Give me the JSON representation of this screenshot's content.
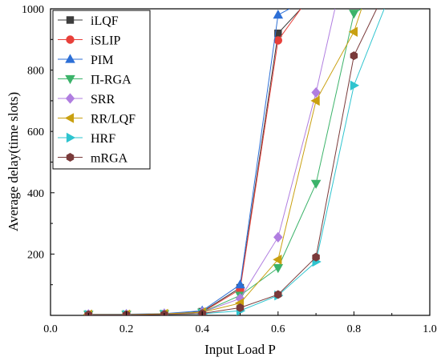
{
  "chart_data": {
    "type": "line",
    "xlabel": "Input Load P",
    "ylabel": "Average delay(time slots)",
    "xlim": [
      0.0,
      1.0
    ],
    "ylim": [
      0,
      1000
    ],
    "x_ticks": [
      "0.0",
      "0.2",
      "0.4",
      "0.6",
      "0.8",
      "1.0"
    ],
    "y_ticks": [
      "200",
      "400",
      "600",
      "800",
      "1000"
    ],
    "x_tick_values": [
      0.0,
      0.2,
      0.4,
      0.6,
      0.8,
      1.0
    ],
    "y_tick_values": [
      200,
      400,
      600,
      800,
      1000
    ],
    "grid": false,
    "legend_position": "top-left",
    "series": [
      {
        "name": "iLQF",
        "marker": "square",
        "color": "#3d3d3d",
        "x": [
          0.1,
          0.2,
          0.3,
          0.4,
          0.5,
          0.6,
          0.66
        ],
        "y": [
          3,
          3,
          5,
          12,
          90,
          920,
          1000
        ]
      },
      {
        "name": "iSLIP",
        "marker": "circle",
        "color": "#e8403a",
        "x": [
          0.1,
          0.2,
          0.3,
          0.4,
          0.5,
          0.6,
          0.66
        ],
        "y": [
          3,
          3,
          4,
          10,
          85,
          897,
          1000
        ]
      },
      {
        "name": "PIM",
        "marker": "triangle-up",
        "color": "#2d6fd6",
        "x": [
          0.1,
          0.2,
          0.3,
          0.4,
          0.5,
          0.6,
          0.63
        ],
        "y": [
          3,
          4,
          6,
          15,
          100,
          980,
          1000
        ]
      },
      {
        "name": "Π-RGA",
        "marker": "triangle-down",
        "color": "#3cb36a",
        "x": [
          0.1,
          0.2,
          0.3,
          0.4,
          0.5,
          0.6,
          0.7,
          0.8,
          0.82
        ],
        "y": [
          3,
          3,
          5,
          10,
          65,
          155,
          430,
          985,
          1000
        ]
      },
      {
        "name": "SRR",
        "marker": "diamond",
        "color": "#b07ee0",
        "x": [
          0.1,
          0.2,
          0.3,
          0.4,
          0.5,
          0.6,
          0.7,
          0.75
        ],
        "y": [
          3,
          3,
          5,
          10,
          55,
          255,
          727,
          1000
        ]
      },
      {
        "name": "RR/LQF",
        "marker": "triangle-left",
        "color": "#c9a010",
        "x": [
          0.1,
          0.2,
          0.3,
          0.4,
          0.5,
          0.6,
          0.7,
          0.8,
          0.82
        ],
        "y": [
          3,
          3,
          5,
          10,
          40,
          182,
          700,
          925,
          1000
        ]
      },
      {
        "name": "HRF",
        "marker": "triangle-right",
        "color": "#2ec4cf",
        "x": [
          0.1,
          0.2,
          0.3,
          0.4,
          0.5,
          0.6,
          0.7,
          0.8,
          0.88
        ],
        "y": [
          2,
          2,
          3,
          5,
          15,
          65,
          175,
          750,
          1000
        ]
      },
      {
        "name": "mRGA",
        "marker": "hexagon",
        "color": "#7a3a3a",
        "x": [
          0.1,
          0.2,
          0.3,
          0.4,
          0.5,
          0.6,
          0.7,
          0.8,
          0.86
        ],
        "y": [
          2,
          2,
          3,
          6,
          25,
          68,
          190,
          847,
          1000
        ]
      }
    ]
  }
}
